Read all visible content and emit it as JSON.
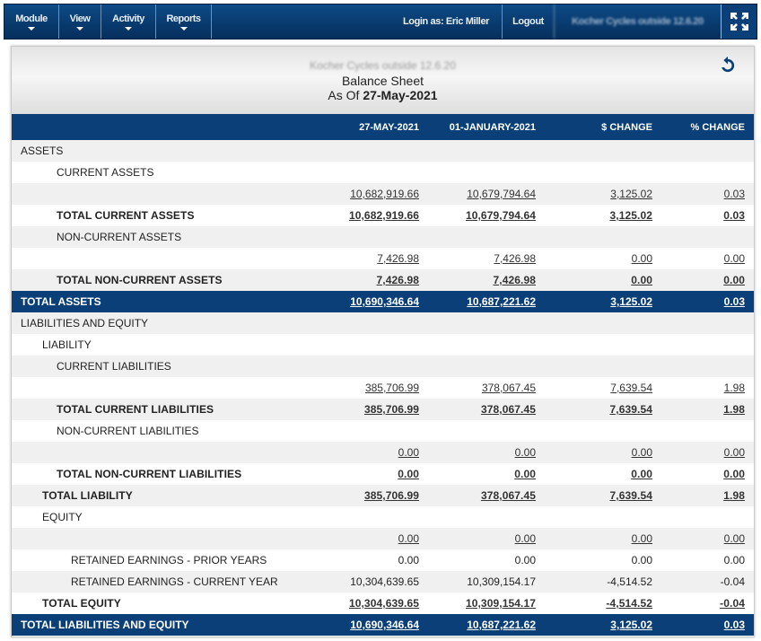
{
  "nav": {
    "menus": [
      "Module",
      "View",
      "Activity",
      "Reports"
    ],
    "login_label": "Login as: Eric Miller",
    "logout_label": "Logout",
    "company_selector": "Kocher Cycles outside 12.6.20"
  },
  "report": {
    "company_name": "Kocher Cycles outside 12.6.20",
    "title": "Balance Sheet",
    "as_of_prefix": "As Of",
    "as_of_date": "27-May-2021",
    "columns": [
      "",
      "27-MAY-2021",
      "01-JANUARY-2021",
      "$ CHANGE",
      "% CHANGE"
    ],
    "rows": [
      {
        "label": "ASSETS",
        "indent": 0,
        "type": "heading",
        "values": []
      },
      {
        "label": "CURRENT ASSETS",
        "indent": 3,
        "type": "heading",
        "values": []
      },
      {
        "label": "",
        "indent": 0,
        "type": "detail",
        "values": [
          "10,682,919.66",
          "10,679,794.64",
          "3,125.02",
          "0.03"
        ]
      },
      {
        "label": "TOTAL CURRENT ASSETS",
        "indent": 3,
        "type": "total",
        "values": [
          "10,682,919.66",
          "10,679,794.64",
          "3,125.02",
          "0.03"
        ]
      },
      {
        "label": "NON-CURRENT ASSETS",
        "indent": 3,
        "type": "heading",
        "values": []
      },
      {
        "label": "",
        "indent": 0,
        "type": "detail",
        "values": [
          "7,426.98",
          "7,426.98",
          "0.00",
          "0.00"
        ]
      },
      {
        "label": "TOTAL NON-CURRENT ASSETS",
        "indent": 3,
        "type": "total",
        "values": [
          "7,426.98",
          "7,426.98",
          "0.00",
          "0.00"
        ]
      },
      {
        "label": "TOTAL ASSETS",
        "indent": 0,
        "type": "grand",
        "values": [
          "10,690,346.64",
          "10,687,221.62",
          "3,125.02",
          "0.03"
        ]
      },
      {
        "label": "LIABILITIES AND EQUITY",
        "indent": 0,
        "type": "heading",
        "values": []
      },
      {
        "label": "LIABILITY",
        "indent": 2,
        "type": "heading",
        "values": []
      },
      {
        "label": "CURRENT LIABILITIES",
        "indent": 3,
        "type": "heading",
        "values": []
      },
      {
        "label": "",
        "indent": 0,
        "type": "detail",
        "values": [
          "385,706.99",
          "378,067.45",
          "7,639.54",
          "1.98"
        ]
      },
      {
        "label": "TOTAL CURRENT LIABILITIES",
        "indent": 3,
        "type": "total",
        "values": [
          "385,706.99",
          "378,067.45",
          "7,639.54",
          "1.98"
        ]
      },
      {
        "label": "NON-CURRENT LIABILITIES",
        "indent": 3,
        "type": "heading",
        "values": []
      },
      {
        "label": "",
        "indent": 0,
        "type": "detail",
        "values": [
          "0.00",
          "0.00",
          "0.00",
          "0.00"
        ]
      },
      {
        "label": "TOTAL NON-CURRENT LIABILITIES",
        "indent": 3,
        "type": "total",
        "values": [
          "0.00",
          "0.00",
          "0.00",
          "0.00"
        ]
      },
      {
        "label": "TOTAL LIABILITY",
        "indent": 2,
        "type": "total",
        "values": [
          "385,706.99",
          "378,067.45",
          "7,639.54",
          "1.98"
        ]
      },
      {
        "label": "EQUITY",
        "indent": 2,
        "type": "heading",
        "values": []
      },
      {
        "label": "",
        "indent": 0,
        "type": "detail",
        "values": [
          "0.00",
          "0.00",
          "0.00",
          "0.00"
        ]
      },
      {
        "label": "RETAINED EARNINGS - PRIOR YEARS",
        "indent": 4,
        "type": "plain",
        "values": [
          "0.00",
          "0.00",
          "0.00",
          "0.00"
        ]
      },
      {
        "label": "RETAINED EARNINGS - CURRENT YEAR",
        "indent": 4,
        "type": "plain",
        "values": [
          "10,304,639.65",
          "10,309,154.17",
          "-4,514.52",
          "-0.04"
        ]
      },
      {
        "label": "TOTAL EQUITY",
        "indent": 2,
        "type": "total",
        "values": [
          "10,304,639.65",
          "10,309,154.17",
          "-4,514.52",
          "-0.04"
        ]
      },
      {
        "label": "TOTAL LIABILITIES AND EQUITY",
        "indent": 0,
        "type": "grand",
        "values": [
          "10,690,346.64",
          "10,687,221.62",
          "3,125.02",
          "0.03"
        ]
      }
    ]
  },
  "icons": {
    "refresh": "refresh-icon",
    "fullscreen": "fullscreen-icon",
    "dropdown": "caret-down-icon"
  },
  "colors": {
    "nav_bg": "#0a3f78",
    "header_bg": "#0a3f78",
    "stripe": "#f0f0f0"
  }
}
